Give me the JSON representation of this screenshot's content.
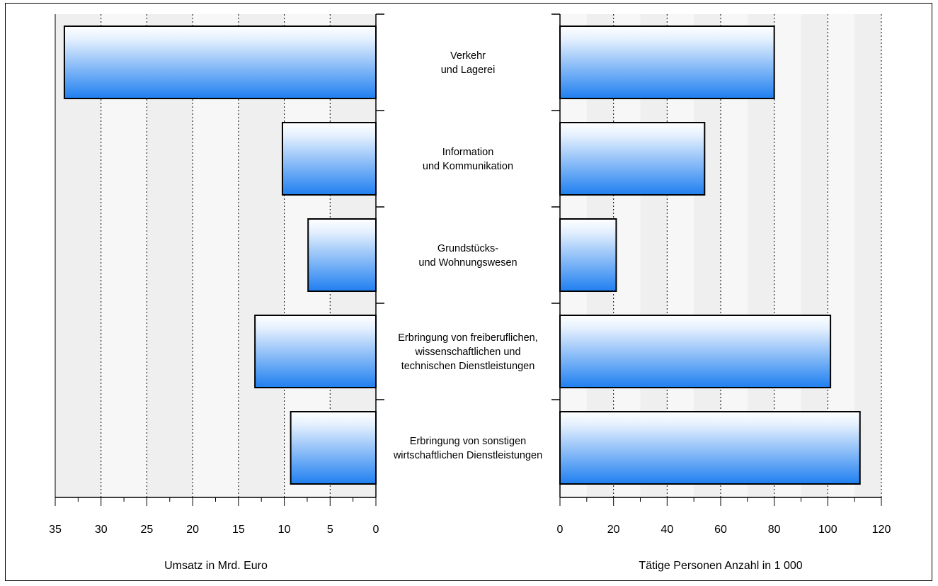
{
  "chart_data": [
    {
      "type": "bar",
      "orientation": "horizontal",
      "x_direction": "reversed",
      "xlabel": "Umsatz in Mrd. Euro",
      "xlim": [
        0,
        35
      ],
      "xticks": [
        "35",
        "30",
        "25",
        "20",
        "15",
        "10",
        "5",
        "0"
      ],
      "grid": true,
      "categories": [
        "Verkehr und Lagerei",
        "Information und Kommunikation",
        "Grundstücks- und Wohnungswesen",
        "Erbringung von freiberuflichen, wissenschaftlichen und technischen Dienstleistungen",
        "Erbringung von sonstigen wirtschaftlichen Dienstleistungen"
      ],
      "values": [
        34.0,
        10.2,
        7.4,
        13.2,
        9.3
      ]
    },
    {
      "type": "bar",
      "orientation": "horizontal",
      "xlabel": "Tätige Personen Anzahl in 1 000",
      "xlim": [
        0,
        120
      ],
      "xticks": [
        "0",
        "20",
        "40",
        "60",
        "80",
        "100",
        "120"
      ],
      "grid": true,
      "categories": [
        "Verkehr und Lagerei",
        "Information und Kommunikation",
        "Grundstücks- und Wohnungswesen",
        "Erbringung von freiberuflichen, wissenschaftlichen und technischen Dienstleistungen",
        "Erbringung von sonstigen wirtschaftlichen Dienstleistungen"
      ],
      "values": [
        80,
        54,
        21,
        101,
        112
      ]
    }
  ],
  "category_labels": [
    [
      "Verkehr",
      "und Lagerei"
    ],
    [
      "Information",
      "und Kommunikation"
    ],
    [
      "Grundstücks-",
      "und Wohnungswesen"
    ],
    [
      "Erbringung von freiberuflichen,",
      "wissenschaftlichen und",
      "technischen Dienstleistungen"
    ],
    [
      "Erbringung von sonstigen",
      "wirtschaftlichen Dienstleistungen"
    ]
  ],
  "colors": {
    "plot_background": "#efefef",
    "bar_top": "#ffffff",
    "bar_bottom": "#1f7ff0",
    "grid": "#000000"
  }
}
